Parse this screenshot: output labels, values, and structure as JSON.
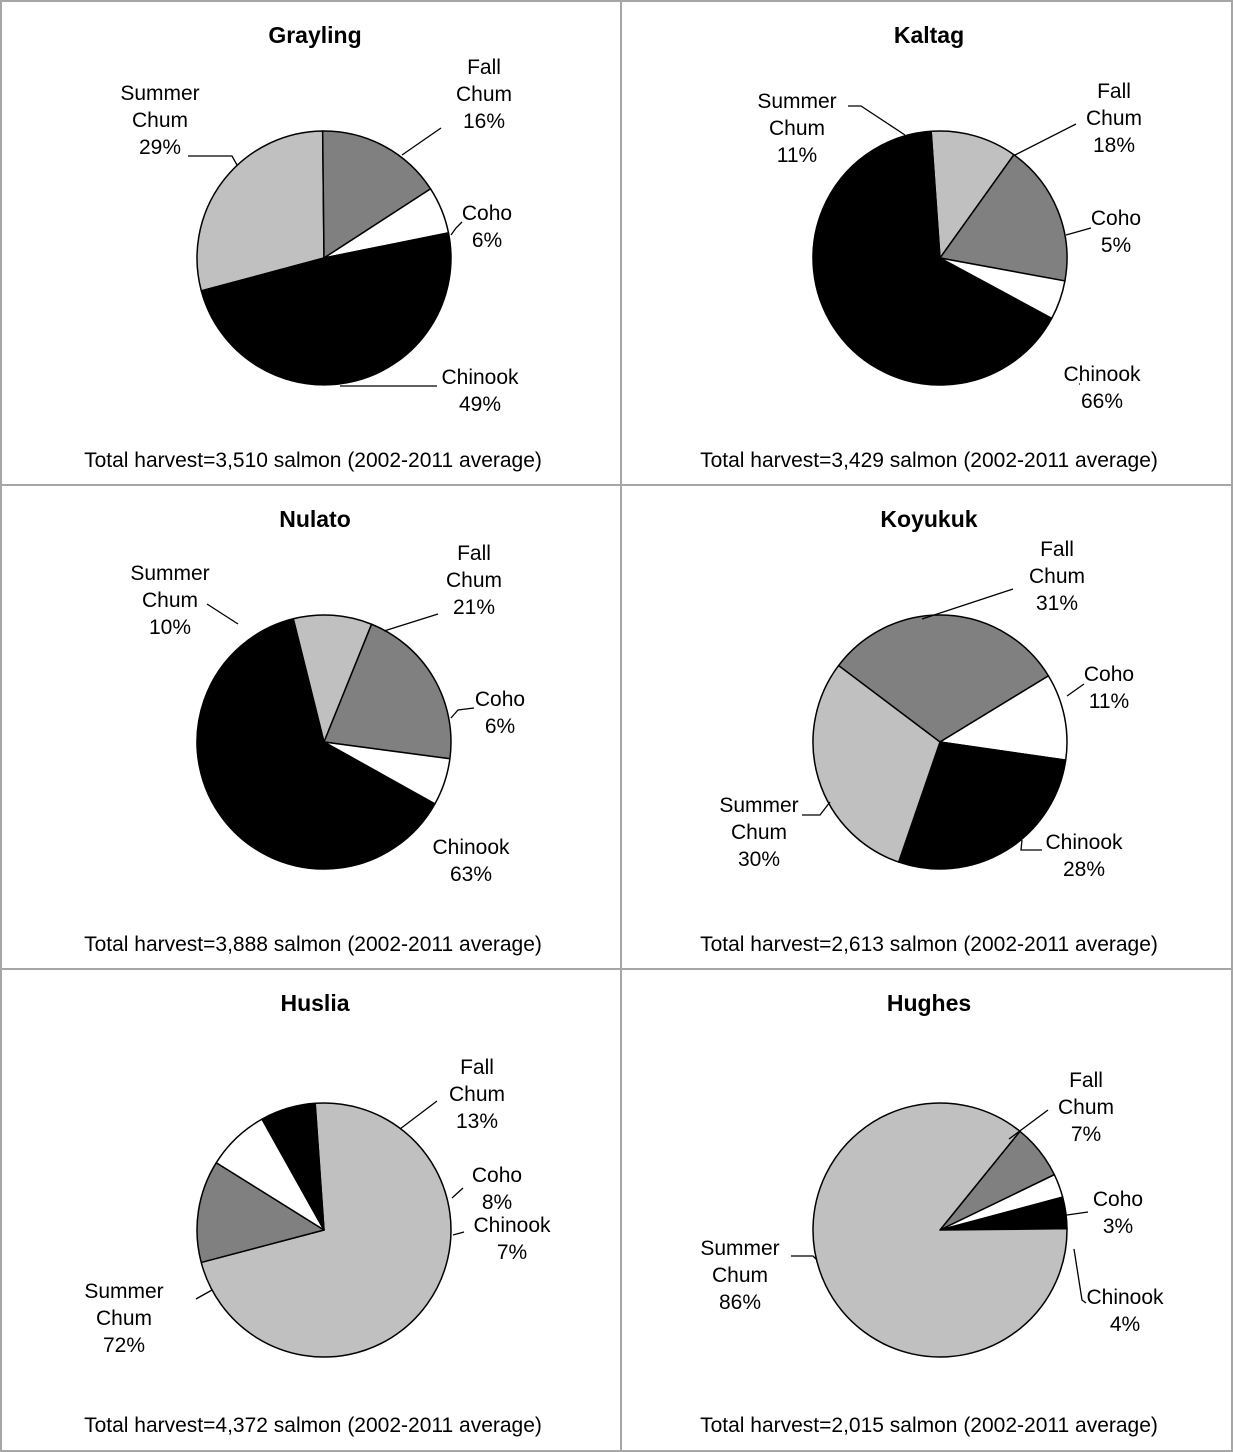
{
  "chart_data": [
    {
      "type": "pie",
      "title": "Grayling",
      "categories": [
        "Summer Chum",
        "Fall Chum",
        "Coho",
        "Chinook"
      ],
      "values": [
        29,
        16,
        6,
        49
      ],
      "labels": [
        [
          "Summer",
          "Chum",
          "29%"
        ],
        [
          "Fall",
          "Chum",
          "16%"
        ],
        [
          "Coho",
          "6%"
        ],
        [
          "Chinook",
          "49%"
        ]
      ],
      "footer": "Total harvest=3,510 salmon (2002-2011 average)"
    },
    {
      "type": "pie",
      "title": "Kaltag",
      "categories": [
        "Summer Chum",
        "Fall Chum",
        "Coho",
        "Chinook"
      ],
      "values": [
        11,
        18,
        5,
        66
      ],
      "labels": [
        [
          "Summer",
          "Chum",
          "11%"
        ],
        [
          "Fall",
          "Chum",
          "18%"
        ],
        [
          "Coho",
          "5%"
        ],
        [
          "Chinook",
          "66%"
        ]
      ],
      "footer": "Total harvest=3,429 salmon (2002-2011 average)"
    },
    {
      "type": "pie",
      "title": "Nulato",
      "categories": [
        "Summer Chum",
        "Fall Chum",
        "Coho",
        "Chinook"
      ],
      "values": [
        10,
        21,
        6,
        63
      ],
      "labels": [
        [
          "Summer",
          "Chum",
          "10%"
        ],
        [
          "Fall",
          "Chum",
          "21%"
        ],
        [
          "Coho",
          "6%"
        ],
        [
          "Chinook",
          "63%"
        ]
      ],
      "footer": "Total harvest=3,888 salmon (2002-2011 average)"
    },
    {
      "type": "pie",
      "title": "Koyukuk",
      "categories": [
        "Summer Chum",
        "Fall Chum",
        "Coho",
        "Chinook"
      ],
      "values": [
        30,
        31,
        11,
        28
      ],
      "labels": [
        [
          "Summer",
          "Chum",
          "30%"
        ],
        [
          "Fall",
          "Chum",
          "31%"
        ],
        [
          "Coho",
          "11%"
        ],
        [
          "Chinook",
          "28%"
        ]
      ],
      "footer": "Total harvest=2,613 salmon (2002-2011 average)"
    },
    {
      "type": "pie",
      "title": "Huslia",
      "categories": [
        "Summer Chum",
        "Fall Chum",
        "Coho",
        "Chinook"
      ],
      "values": [
        72,
        13,
        8,
        7
      ],
      "labels": [
        [
          "Summer",
          "Chum",
          "72%"
        ],
        [
          "Fall",
          "Chum",
          "13%"
        ],
        [
          "Coho",
          "8%"
        ],
        [
          "Chinook",
          "7%"
        ]
      ],
      "footer": "Total harvest=4,372 salmon (2002-2011 average)"
    },
    {
      "type": "pie",
      "title": "Hughes",
      "categories": [
        "Summer Chum",
        "Fall Chum",
        "Coho",
        "Chinook"
      ],
      "values": [
        86,
        7,
        3,
        4
      ],
      "labels": [
        [
          "Summer",
          "Chum",
          "86%"
        ],
        [
          "Fall",
          "Chum",
          "7%"
        ],
        [
          "Coho",
          "3%"
        ],
        [
          "Chinook",
          "4%"
        ]
      ],
      "footer": "Total harvest=2,015 salmon (2002-2011 average)"
    }
  ],
  "colors": {
    "Summer Chum": "#c0c0c0",
    "Fall Chum": "#808080",
    "Coho": "#ffffff",
    "Chinook": "#000000",
    "panel_border": "#a6a6a6"
  }
}
